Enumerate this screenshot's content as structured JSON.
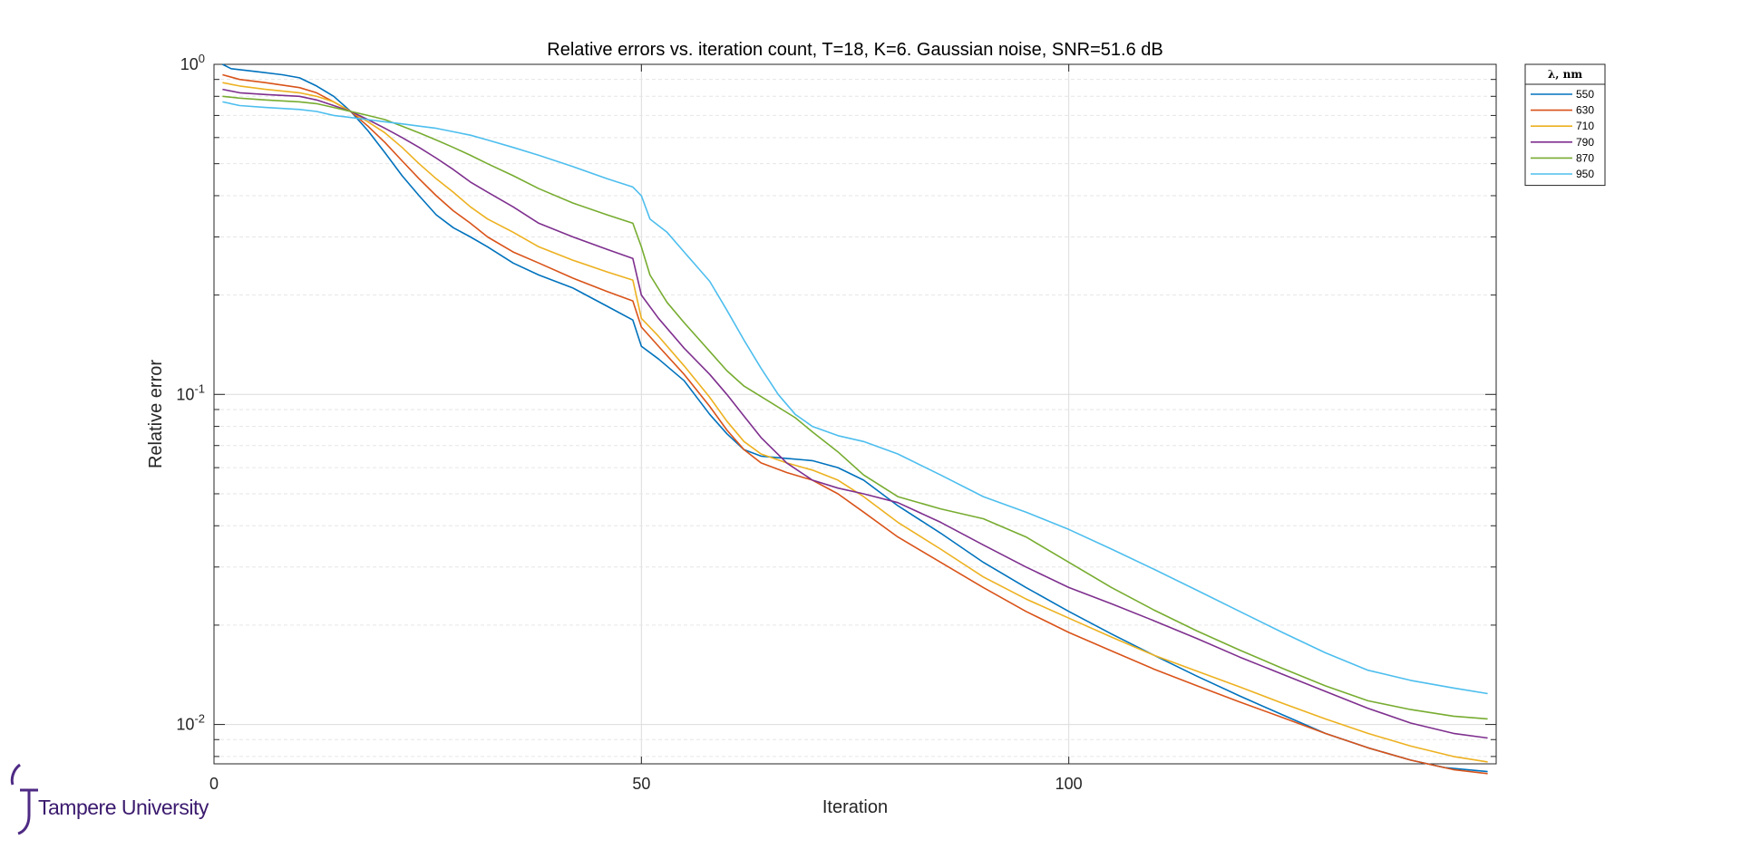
{
  "chart_data": {
    "type": "line",
    "title": "Relative errors vs. iteration count, T=18, K=6. Gaussian noise, SNR=51.6 dB",
    "xlabel": "Iteration",
    "ylabel": "Relative error",
    "xlim": [
      0,
      150
    ],
    "ylim": [
      0.0076,
      1.0
    ],
    "yscale": "log",
    "grid": true,
    "legend_position": "outside-top-right",
    "legend_title": "λ, nm",
    "x_ticks": [
      {
        "value": 0,
        "label": "0"
      },
      {
        "value": 50,
        "label": "50"
      },
      {
        "value": 100,
        "label": "100"
      }
    ],
    "y_ticks": [
      {
        "value": 1,
        "base": "10",
        "exp": "0"
      },
      {
        "value": 0.1,
        "base": "10",
        "exp": "-1"
      },
      {
        "value": 0.01,
        "base": "10",
        "exp": "-2"
      }
    ],
    "series": [
      {
        "name": "550",
        "color": "#0072BD",
        "points": [
          [
            1,
            1.0
          ],
          [
            2,
            0.97
          ],
          [
            5,
            0.95
          ],
          [
            8,
            0.93
          ],
          [
            10,
            0.91
          ],
          [
            12,
            0.86
          ],
          [
            14,
            0.8
          ],
          [
            16,
            0.72
          ],
          [
            18,
            0.63
          ],
          [
            20,
            0.54
          ],
          [
            22,
            0.46
          ],
          [
            24,
            0.4
          ],
          [
            26,
            0.35
          ],
          [
            28,
            0.32
          ],
          [
            30,
            0.3
          ],
          [
            32,
            0.28
          ],
          [
            35,
            0.25
          ],
          [
            38,
            0.23
          ],
          [
            42,
            0.21
          ],
          [
            46,
            0.185
          ],
          [
            49,
            0.168
          ],
          [
            50,
            0.14
          ],
          [
            52,
            0.128
          ],
          [
            55,
            0.11
          ],
          [
            58,
            0.087
          ],
          [
            60,
            0.076
          ],
          [
            62,
            0.068
          ],
          [
            64,
            0.065
          ],
          [
            67,
            0.064
          ],
          [
            70,
            0.063
          ],
          [
            73,
            0.06
          ],
          [
            76,
            0.055
          ],
          [
            80,
            0.046
          ],
          [
            85,
            0.038
          ],
          [
            90,
            0.031
          ],
          [
            95,
            0.026
          ],
          [
            100,
            0.022
          ],
          [
            105,
            0.0188
          ],
          [
            110,
            0.0162
          ],
          [
            115,
            0.014
          ],
          [
            120,
            0.0122
          ],
          [
            125,
            0.0107
          ],
          [
            130,
            0.0094
          ],
          [
            135,
            0.0085
          ],
          [
            140,
            0.0078
          ],
          [
            144,
            0.0074
          ],
          [
            149,
            0.0072
          ]
        ]
      },
      {
        "name": "630",
        "color": "#D95319",
        "points": [
          [
            1,
            0.93
          ],
          [
            3,
            0.9
          ],
          [
            6,
            0.88
          ],
          [
            10,
            0.85
          ],
          [
            12,
            0.82
          ],
          [
            14,
            0.77
          ],
          [
            16,
            0.72
          ],
          [
            18,
            0.65
          ],
          [
            20,
            0.58
          ],
          [
            22,
            0.51
          ],
          [
            24,
            0.45
          ],
          [
            26,
            0.4
          ],
          [
            28,
            0.36
          ],
          [
            30,
            0.33
          ],
          [
            32,
            0.3
          ],
          [
            35,
            0.27
          ],
          [
            38,
            0.25
          ],
          [
            42,
            0.225
          ],
          [
            46,
            0.205
          ],
          [
            49,
            0.192
          ],
          [
            50,
            0.16
          ],
          [
            52,
            0.14
          ],
          [
            55,
            0.115
          ],
          [
            58,
            0.092
          ],
          [
            60,
            0.078
          ],
          [
            62,
            0.068
          ],
          [
            64,
            0.062
          ],
          [
            67,
            0.058
          ],
          [
            70,
            0.055
          ],
          [
            73,
            0.05
          ],
          [
            76,
            0.044
          ],
          [
            80,
            0.037
          ],
          [
            85,
            0.031
          ],
          [
            90,
            0.026
          ],
          [
            95,
            0.022
          ],
          [
            100,
            0.019
          ],
          [
            105,
            0.0167
          ],
          [
            110,
            0.0147
          ],
          [
            115,
            0.0131
          ],
          [
            120,
            0.0117
          ],
          [
            125,
            0.0105
          ],
          [
            130,
            0.0094
          ],
          [
            135,
            0.0085
          ],
          [
            140,
            0.0078
          ],
          [
            145,
            0.0073
          ],
          [
            149,
            0.0071
          ]
        ]
      },
      {
        "name": "710",
        "color": "#EDB120",
        "points": [
          [
            1,
            0.88
          ],
          [
            3,
            0.86
          ],
          [
            6,
            0.84
          ],
          [
            10,
            0.82
          ],
          [
            12,
            0.8
          ],
          [
            14,
            0.77
          ],
          [
            16,
            0.72
          ],
          [
            18,
            0.67
          ],
          [
            20,
            0.62
          ],
          [
            22,
            0.56
          ],
          [
            24,
            0.5
          ],
          [
            26,
            0.45
          ],
          [
            28,
            0.41
          ],
          [
            30,
            0.37
          ],
          [
            32,
            0.34
          ],
          [
            35,
            0.31
          ],
          [
            38,
            0.28
          ],
          [
            42,
            0.255
          ],
          [
            46,
            0.235
          ],
          [
            49,
            0.222
          ],
          [
            50,
            0.17
          ],
          [
            52,
            0.15
          ],
          [
            55,
            0.122
          ],
          [
            58,
            0.098
          ],
          [
            60,
            0.083
          ],
          [
            62,
            0.072
          ],
          [
            64,
            0.066
          ],
          [
            67,
            0.062
          ],
          [
            70,
            0.059
          ],
          [
            73,
            0.055
          ],
          [
            76,
            0.049
          ],
          [
            80,
            0.041
          ],
          [
            85,
            0.034
          ],
          [
            90,
            0.028
          ],
          [
            95,
            0.024
          ],
          [
            100,
            0.021
          ],
          [
            105,
            0.0184
          ],
          [
            110,
            0.0162
          ],
          [
            115,
            0.0145
          ],
          [
            120,
            0.013
          ],
          [
            125,
            0.0116
          ],
          [
            130,
            0.0104
          ],
          [
            135,
            0.0094
          ],
          [
            140,
            0.0086
          ],
          [
            145,
            0.008
          ],
          [
            149,
            0.0077
          ]
        ]
      },
      {
        "name": "790",
        "color": "#7E2F8E",
        "points": [
          [
            1,
            0.84
          ],
          [
            3,
            0.82
          ],
          [
            6,
            0.81
          ],
          [
            10,
            0.8
          ],
          [
            12,
            0.78
          ],
          [
            14,
            0.75
          ],
          [
            16,
            0.72
          ],
          [
            18,
            0.68
          ],
          [
            20,
            0.64
          ],
          [
            22,
            0.6
          ],
          [
            24,
            0.56
          ],
          [
            26,
            0.52
          ],
          [
            28,
            0.48
          ],
          [
            30,
            0.44
          ],
          [
            32,
            0.41
          ],
          [
            35,
            0.37
          ],
          [
            38,
            0.33
          ],
          [
            42,
            0.3
          ],
          [
            46,
            0.275
          ],
          [
            49,
            0.258
          ],
          [
            50,
            0.2
          ],
          [
            52,
            0.17
          ],
          [
            55,
            0.138
          ],
          [
            58,
            0.115
          ],
          [
            60,
            0.1
          ],
          [
            62,
            0.086
          ],
          [
            64,
            0.074
          ],
          [
            67,
            0.062
          ],
          [
            70,
            0.055
          ],
          [
            73,
            0.052
          ],
          [
            76,
            0.05
          ],
          [
            80,
            0.047
          ],
          [
            85,
            0.041
          ],
          [
            90,
            0.035
          ],
          [
            95,
            0.03
          ],
          [
            100,
            0.026
          ],
          [
            105,
            0.0232
          ],
          [
            110,
            0.0206
          ],
          [
            115,
            0.0182
          ],
          [
            120,
            0.016
          ],
          [
            125,
            0.0142
          ],
          [
            130,
            0.0126
          ],
          [
            135,
            0.0112
          ],
          [
            140,
            0.0101
          ],
          [
            145,
            0.0094
          ],
          [
            149,
            0.0091
          ]
        ]
      },
      {
        "name": "870",
        "color": "#77AC30",
        "points": [
          [
            1,
            0.8
          ],
          [
            3,
            0.79
          ],
          [
            6,
            0.78
          ],
          [
            10,
            0.77
          ],
          [
            12,
            0.76
          ],
          [
            14,
            0.74
          ],
          [
            16,
            0.72
          ],
          [
            18,
            0.7
          ],
          [
            20,
            0.68
          ],
          [
            22,
            0.65
          ],
          [
            24,
            0.62
          ],
          [
            26,
            0.59
          ],
          [
            28,
            0.56
          ],
          [
            30,
            0.53
          ],
          [
            32,
            0.5
          ],
          [
            35,
            0.46
          ],
          [
            38,
            0.42
          ],
          [
            42,
            0.38
          ],
          [
            46,
            0.35
          ],
          [
            49,
            0.33
          ],
          [
            50,
            0.28
          ],
          [
            51,
            0.23
          ],
          [
            53,
            0.19
          ],
          [
            55,
            0.165
          ],
          [
            58,
            0.135
          ],
          [
            60,
            0.118
          ],
          [
            62,
            0.106
          ],
          [
            65,
            0.095
          ],
          [
            68,
            0.085
          ],
          [
            70,
            0.077
          ],
          [
            73,
            0.067
          ],
          [
            76,
            0.057
          ],
          [
            80,
            0.049
          ],
          [
            85,
            0.045
          ],
          [
            90,
            0.042
          ],
          [
            95,
            0.037
          ],
          [
            100,
            0.031
          ],
          [
            105,
            0.026
          ],
          [
            110,
            0.0222
          ],
          [
            115,
            0.0192
          ],
          [
            120,
            0.0168
          ],
          [
            125,
            0.0148
          ],
          [
            130,
            0.0131
          ],
          [
            135,
            0.0118
          ],
          [
            140,
            0.0111
          ],
          [
            145,
            0.0106
          ],
          [
            149,
            0.0104
          ]
        ]
      },
      {
        "name": "950",
        "color": "#4DBEEE",
        "points": [
          [
            1,
            0.77
          ],
          [
            3,
            0.75
          ],
          [
            6,
            0.74
          ],
          [
            10,
            0.73
          ],
          [
            12,
            0.72
          ],
          [
            14,
            0.7
          ],
          [
            16,
            0.69
          ],
          [
            18,
            0.68
          ],
          [
            20,
            0.67
          ],
          [
            22,
            0.66
          ],
          [
            24,
            0.65
          ],
          [
            26,
            0.64
          ],
          [
            28,
            0.625
          ],
          [
            30,
            0.61
          ],
          [
            32,
            0.59
          ],
          [
            35,
            0.56
          ],
          [
            38,
            0.53
          ],
          [
            42,
            0.49
          ],
          [
            46,
            0.45
          ],
          [
            49,
            0.425
          ],
          [
            50,
            0.4
          ],
          [
            51,
            0.34
          ],
          [
            53,
            0.31
          ],
          [
            55,
            0.27
          ],
          [
            58,
            0.22
          ],
          [
            60,
            0.18
          ],
          [
            62,
            0.146
          ],
          [
            64,
            0.12
          ],
          [
            66,
            0.1
          ],
          [
            68,
            0.087
          ],
          [
            70,
            0.08
          ],
          [
            73,
            0.075
          ],
          [
            76,
            0.072
          ],
          [
            80,
            0.066
          ],
          [
            85,
            0.057
          ],
          [
            90,
            0.049
          ],
          [
            95,
            0.044
          ],
          [
            100,
            0.039
          ],
          [
            105,
            0.034
          ],
          [
            110,
            0.0295
          ],
          [
            115,
            0.0255
          ],
          [
            120,
            0.022
          ],
          [
            125,
            0.019
          ],
          [
            130,
            0.0165
          ],
          [
            135,
            0.0146
          ],
          [
            140,
            0.0136
          ],
          [
            145,
            0.0129
          ],
          [
            149,
            0.0124
          ]
        ]
      }
    ]
  },
  "logo": {
    "name": "Tampere University"
  }
}
